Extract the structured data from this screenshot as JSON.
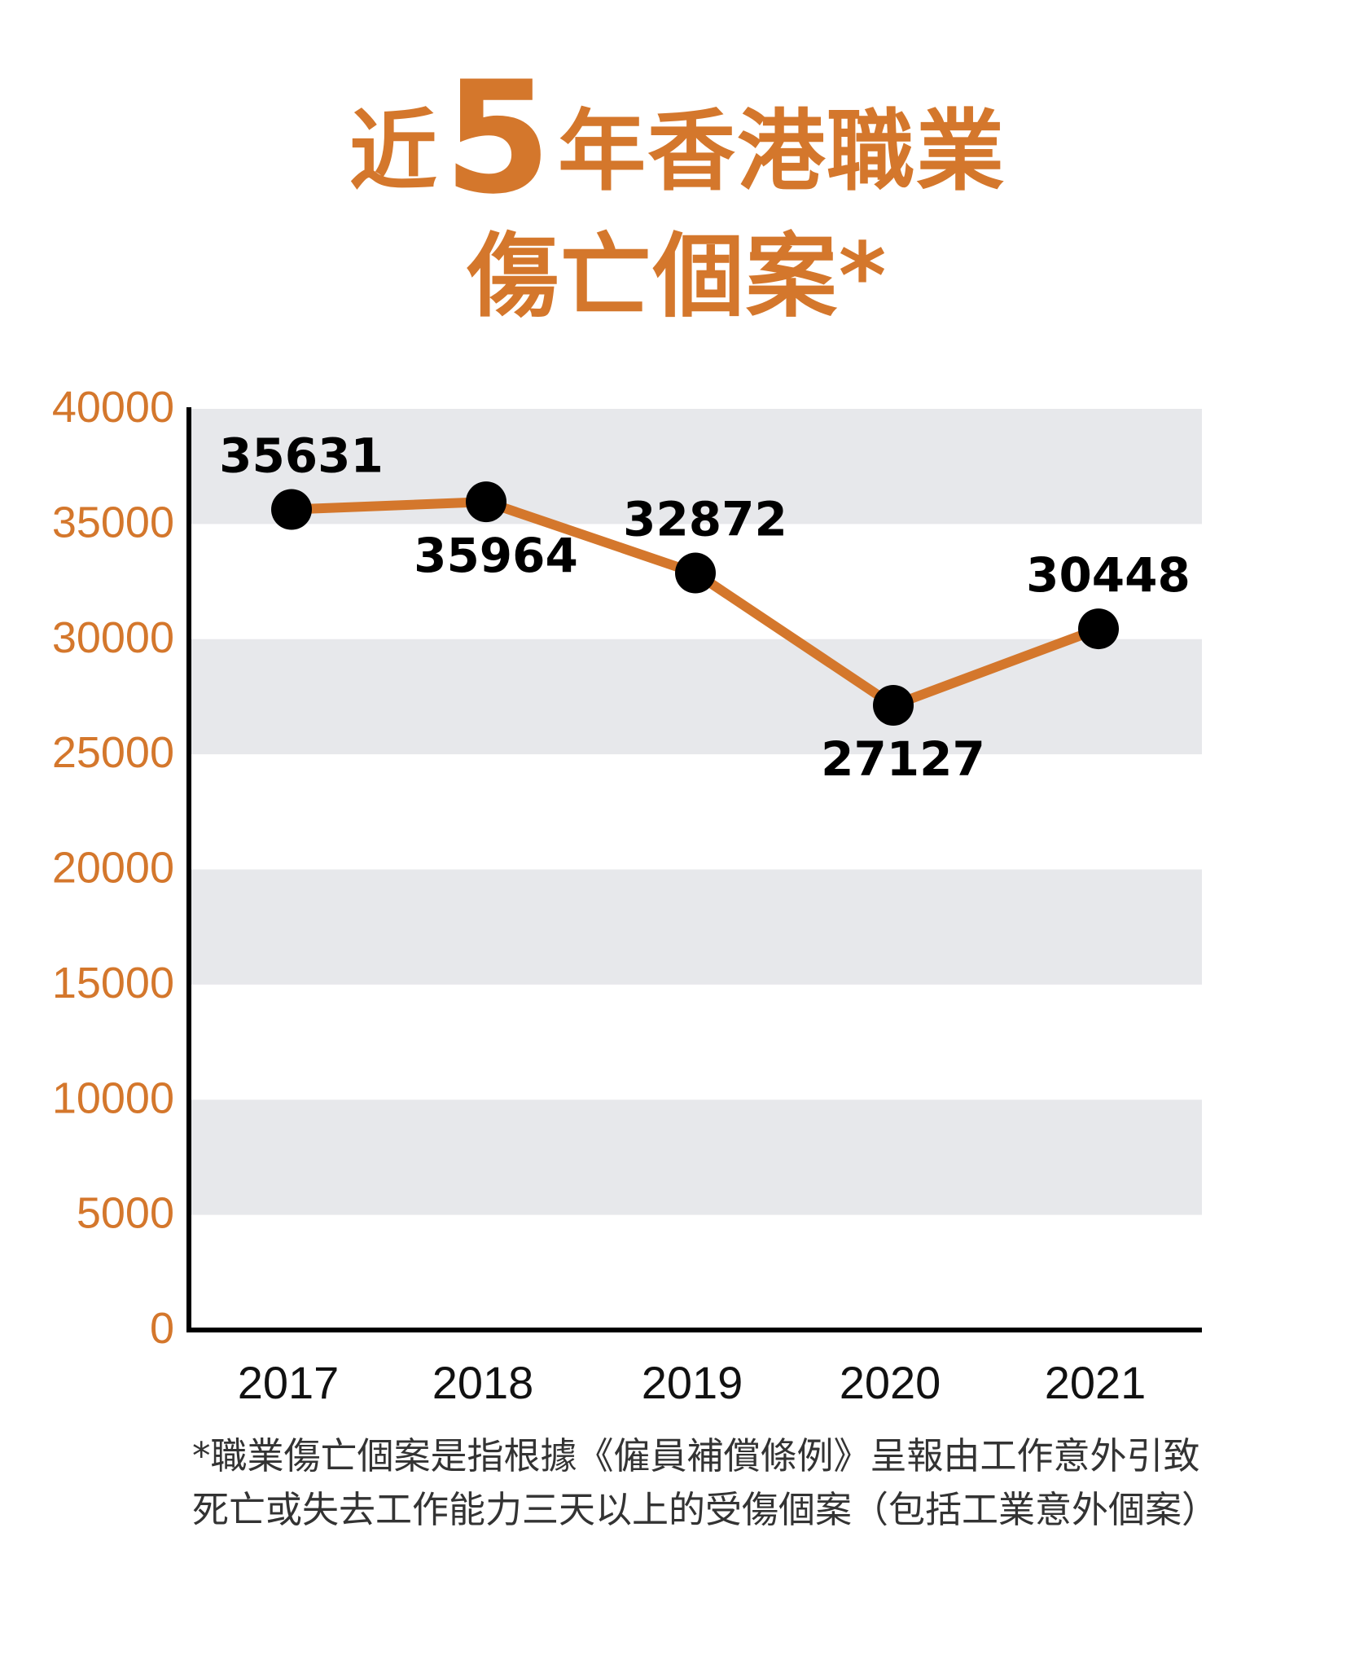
{
  "title": {
    "prefix": "近",
    "number": "5",
    "suffix": "年香港職業",
    "line2": "傷亡個案*"
  },
  "colors": {
    "accent": "#d4772c",
    "band": "#e7e8eb",
    "marker": "#000000"
  },
  "chart_data": {
    "type": "line",
    "title": "近5年香港職業傷亡個案*",
    "xlabel": "",
    "ylabel": "",
    "categories": [
      "2017",
      "2018",
      "2019",
      "2020",
      "2021"
    ],
    "series": [
      {
        "name": "職業傷亡個案",
        "values": [
          35631,
          35964,
          32872,
          27127,
          30448
        ]
      }
    ],
    "ylim": [
      0,
      40000
    ],
    "yticks": [
      0,
      5000,
      10000,
      15000,
      20000,
      25000,
      30000,
      35000,
      40000
    ],
    "label_positions": [
      "above",
      "below",
      "above",
      "below",
      "above"
    ],
    "grid": "alternating horizontal bands"
  },
  "footnote": "*職業傷亡個案是指根據《僱員補償條例》呈報由工作意外引致死亡或失去工作能力三天以上的受傷個案（包括工業意外個案）"
}
